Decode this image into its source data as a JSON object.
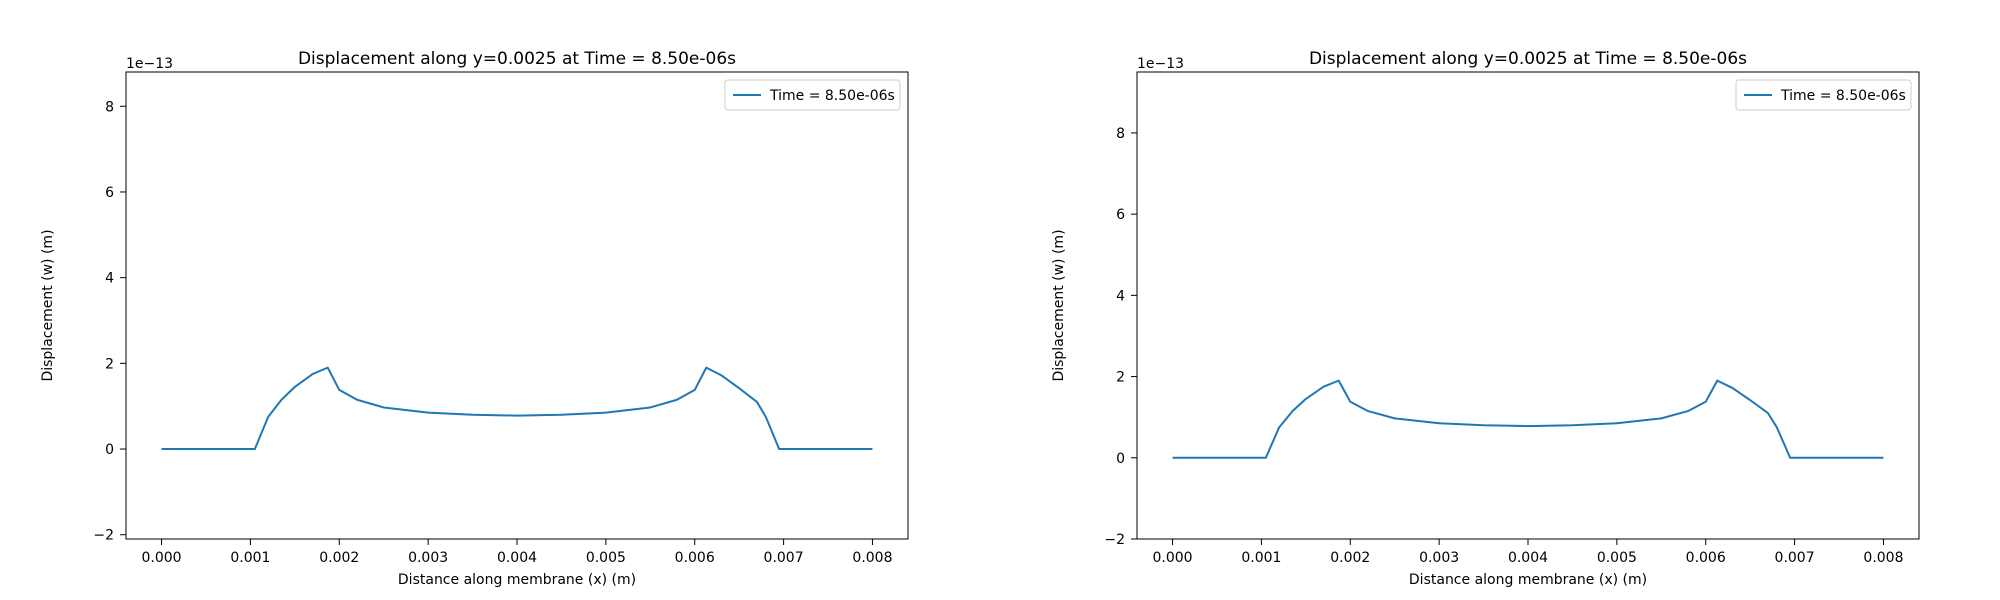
{
  "chart_data": [
    {
      "type": "line",
      "title": "Displacement along y=0.0025 at Time = 8.50e-06s",
      "xlabel": "Distance along membrane (x) (m)",
      "ylabel": "Displacement (w) (m)",
      "y_scale_label": "1e−13",
      "xlim": [
        -0.0004,
        0.0084
      ],
      "ylim": [
        -2.1,
        8.8
      ],
      "x_ticks": [
        "0.000",
        "0.001",
        "0.002",
        "0.003",
        "0.004",
        "0.005",
        "0.006",
        "0.007",
        "0.008"
      ],
      "x_tick_values": [
        0,
        0.001,
        0.002,
        0.003,
        0.004,
        0.005,
        0.006,
        0.007,
        0.008
      ],
      "y_ticks": [
        "−2",
        "0",
        "2",
        "4",
        "6",
        "8"
      ],
      "y_tick_values": [
        -2,
        0,
        2,
        4,
        6,
        8
      ],
      "legend_position": "top-right",
      "grid": false,
      "series": [
        {
          "name": "Time = 8.50e-06s",
          "color": "#1f77b4",
          "x": [
            0.0,
            0.0003,
            0.0006,
            0.0008,
            0.00095,
            0.00105,
            0.0012,
            0.00135,
            0.0015,
            0.0017,
            0.00187,
            0.002,
            0.0022,
            0.0025,
            0.003,
            0.0035,
            0.004,
            0.0045,
            0.005,
            0.0055,
            0.0058,
            0.006,
            0.00613,
            0.0063,
            0.0065,
            0.0067,
            0.0068,
            0.00695,
            0.0071,
            0.0074,
            0.0077,
            0.008
          ],
          "y": [
            0.0,
            0.0,
            0.0,
            0.0,
            0.0,
            0.0,
            0.75,
            1.15,
            1.45,
            1.75,
            1.9,
            1.38,
            1.15,
            0.97,
            0.85,
            0.8,
            0.78,
            0.8,
            0.85,
            0.97,
            1.15,
            1.38,
            1.9,
            1.72,
            1.42,
            1.1,
            0.75,
            0.0,
            0.0,
            0.0,
            0.0,
            0.0
          ]
        }
      ]
    },
    {
      "type": "line",
      "title": "Displacement along y=0.0025 at Time = 8.50e-06s",
      "xlabel": "Distance along membrane (x) (m)",
      "ylabel": "Displacement (w) (m)",
      "y_scale_label": "1e−13",
      "xlim": [
        -0.0004,
        0.0084
      ],
      "ylim": [
        -2.0,
        9.5
      ],
      "x_ticks": [
        "0.000",
        "0.001",
        "0.002",
        "0.003",
        "0.004",
        "0.005",
        "0.006",
        "0.007",
        "0.008"
      ],
      "x_tick_values": [
        0,
        0.001,
        0.002,
        0.003,
        0.004,
        0.005,
        0.006,
        0.007,
        0.008
      ],
      "y_ticks": [
        "−2",
        "0",
        "2",
        "4",
        "6",
        "8"
      ],
      "y_tick_values": [
        -2,
        0,
        2,
        4,
        6,
        8
      ],
      "legend_position": "top-right",
      "grid": false,
      "series": [
        {
          "name": "Time = 8.50e-06s",
          "color": "#1f77b4",
          "x": [
            0.0,
            0.0003,
            0.0006,
            0.0008,
            0.00095,
            0.00105,
            0.0012,
            0.00135,
            0.0015,
            0.0017,
            0.00187,
            0.002,
            0.0022,
            0.0025,
            0.003,
            0.0035,
            0.004,
            0.0045,
            0.005,
            0.0055,
            0.0058,
            0.006,
            0.00613,
            0.0063,
            0.0065,
            0.0067,
            0.0068,
            0.00695,
            0.0071,
            0.0074,
            0.0077,
            0.008
          ],
          "y": [
            0.0,
            0.0,
            0.0,
            0.0,
            0.0,
            0.0,
            0.75,
            1.15,
            1.45,
            1.75,
            1.9,
            1.38,
            1.15,
            0.97,
            0.85,
            0.8,
            0.78,
            0.8,
            0.85,
            0.97,
            1.15,
            1.38,
            1.9,
            1.72,
            1.42,
            1.1,
            0.75,
            0.0,
            0.0,
            0.0,
            0.0,
            0.0
          ]
        }
      ]
    }
  ]
}
